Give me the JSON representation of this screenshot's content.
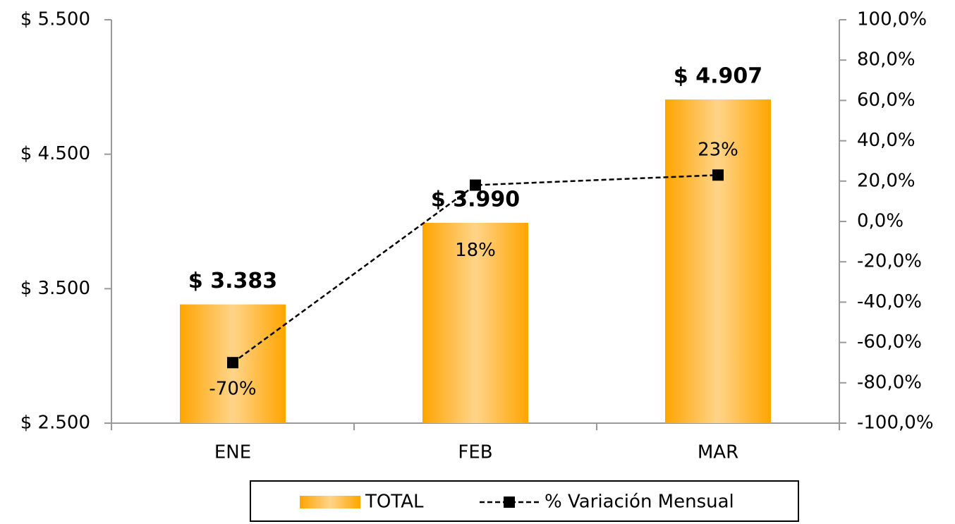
{
  "chart_data": {
    "type": "bar-line",
    "categories": [
      "ENE",
      "FEB",
      "MAR"
    ],
    "series": [
      {
        "name": "TOTAL",
        "type": "bar",
        "color": "#FFA500",
        "values": [
          3383,
          3990,
          4907
        ],
        "value_labels": [
          "$ 3.383",
          "$ 3.990",
          "$ 4.907"
        ]
      },
      {
        "name": "% Variación Mensual",
        "type": "line",
        "axis": "y2",
        "color": "#000000",
        "values": [
          -70,
          18,
          23
        ],
        "value_labels": [
          "-70%",
          "18%",
          "23%"
        ]
      }
    ],
    "ylim": [
      2500,
      5500
    ],
    "yticks": [
      {
        "value": 2500,
        "label": "$ 2.500"
      },
      {
        "value": 3500,
        "label": "$ 3.500"
      },
      {
        "value": 4500,
        "label": "$ 4.500"
      },
      {
        "value": 5500,
        "label": "$ 5.500"
      }
    ],
    "y2lim": [
      -100,
      100
    ],
    "y2ticks": [
      {
        "value": -100,
        "label": "-100,0%"
      },
      {
        "value": -80,
        "label": "-80,0%"
      },
      {
        "value": -60,
        "label": "-60,0%"
      },
      {
        "value": -40,
        "label": "-40,0%"
      },
      {
        "value": -20,
        "label": "-20,0%"
      },
      {
        "value": 0,
        "label": "0,0%"
      },
      {
        "value": 20,
        "label": "20,0%"
      },
      {
        "value": 40,
        "label": "40,0%"
      },
      {
        "value": 60,
        "label": "60,0%"
      },
      {
        "value": 80,
        "label": "80,0%"
      },
      {
        "value": 100,
        "label": "100,0%"
      }
    ],
    "legend": "bottom",
    "grid": false
  }
}
